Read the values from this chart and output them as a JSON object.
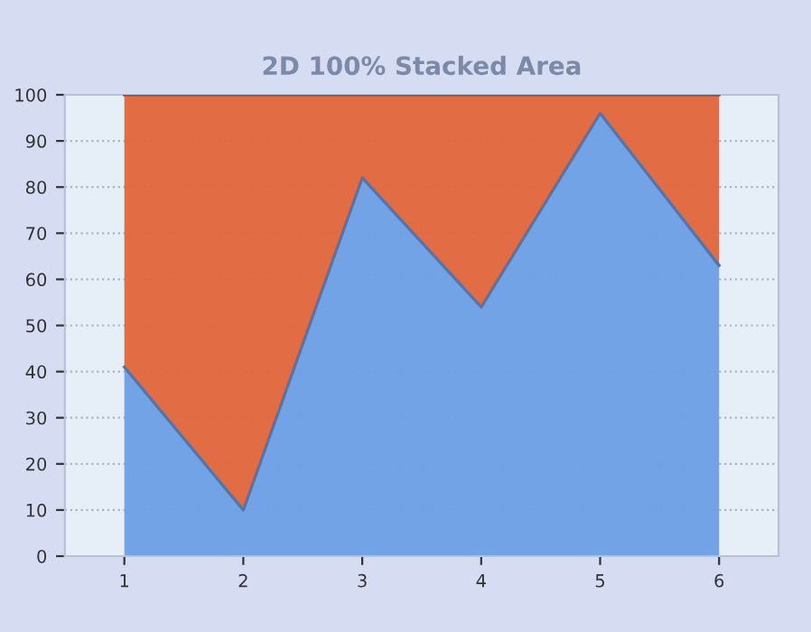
{
  "chart_data": {
    "type": "area",
    "title": "2D 100% Stacked Area",
    "stacked": true,
    "categories": [
      "1",
      "2",
      "3",
      "4",
      "5",
      "6"
    ],
    "series": [
      {
        "color": "#6d9ee6",
        "values": [
          41,
          10,
          82,
          54,
          96,
          63
        ]
      },
      {
        "color": "#e2653a",
        "values": [
          59,
          90,
          18,
          46,
          4,
          37
        ]
      }
    ],
    "ylim": [
      0,
      100
    ],
    "yticks": [
      0,
      10,
      20,
      30,
      40,
      50,
      60,
      70,
      80,
      90,
      100
    ],
    "grid": "y"
  }
}
